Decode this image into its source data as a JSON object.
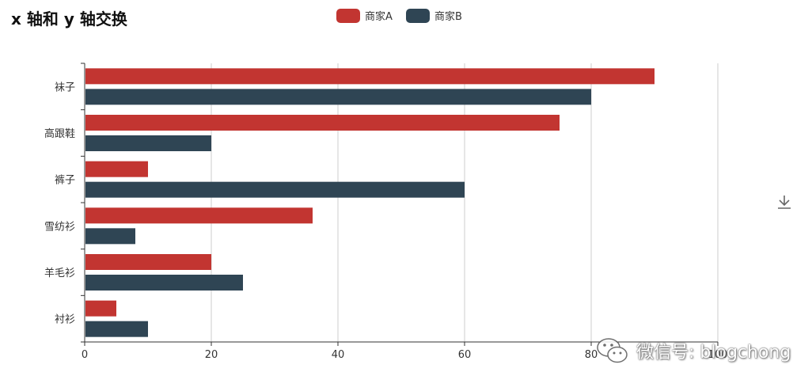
{
  "chart_data": {
    "type": "bar",
    "orientation": "horizontal",
    "title": "x 轴和 y 轴交换",
    "categories": [
      "衬衫",
      "羊毛衫",
      "雪纺衫",
      "裤子",
      "高跟鞋",
      "袜子"
    ],
    "series": [
      {
        "name": "商家A",
        "color": "#c23531",
        "values": [
          5,
          20,
          36,
          10,
          75,
          90
        ]
      },
      {
        "name": "商家B",
        "color": "#2f4554",
        "values": [
          10,
          25,
          8,
          60,
          20,
          80
        ]
      }
    ],
    "xlim": [
      0,
      100
    ],
    "xticks": [
      0,
      20,
      40,
      60,
      80,
      100
    ],
    "grid": true,
    "legend": "top-center"
  },
  "toolbox": {
    "download_icon": "download-icon"
  },
  "watermark": {
    "text": "微信号: blogchong",
    "icon": "wechat-icon"
  }
}
